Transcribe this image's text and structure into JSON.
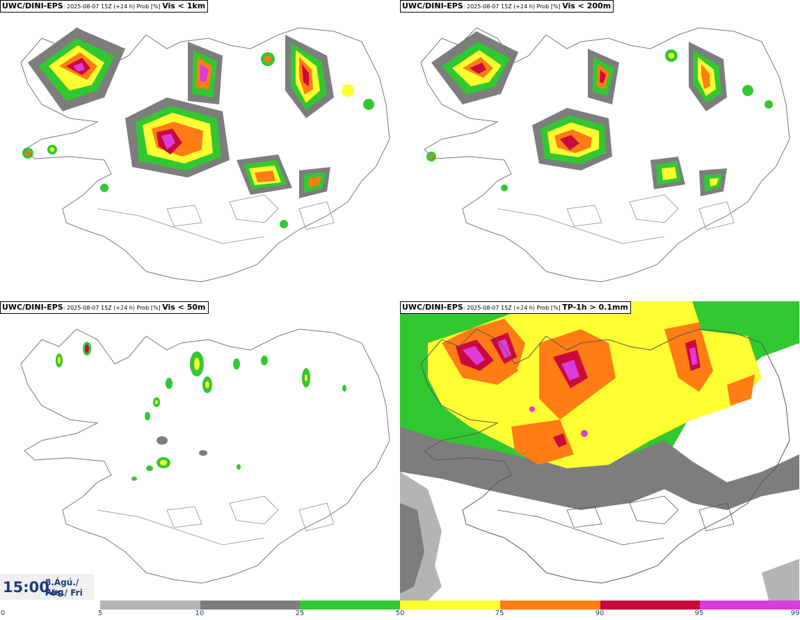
{
  "panels": [
    {
      "source": "UWC/DINI-EPS",
      "meta": ": 2025-08-07 15Z (+24 h) Prob [%] ",
      "param": "Vis < 1km"
    },
    {
      "source": "UWC/DINI-EPS",
      "meta": ": 2025-08-07 15Z (+24 h) Prob [%] ",
      "param": "Vis < 200m"
    },
    {
      "source": "UWC/DINI-EPS",
      "meta": ": 2025-08-07 15Z (+24 h) Prob [%] ",
      "param": "Vis < 50m"
    },
    {
      "source": "UWC/DINI-EPS",
      "meta": ": 2025-08-07 15Z (+24 h) Prob [%] ",
      "param": "TP-1h > 0.1mm"
    }
  ],
  "valid_time": {
    "time": "15:00",
    "date_line1": "8.Ágú./ Aug",
    "date_line2": "Fös./ Fri"
  },
  "colorbar": {
    "ticks": [
      "0",
      "5",
      "10",
      "25",
      "50",
      "75",
      "90",
      "95",
      "99"
    ],
    "colors": [
      "#b4b4b4",
      "#7d7d7d",
      "#32c832",
      "#ffff32",
      "#ff7d14",
      "#c80a3c",
      "#dc3cdc"
    ]
  },
  "colors": {
    "land_outline": "#777777",
    "lakes": "#555555"
  }
}
